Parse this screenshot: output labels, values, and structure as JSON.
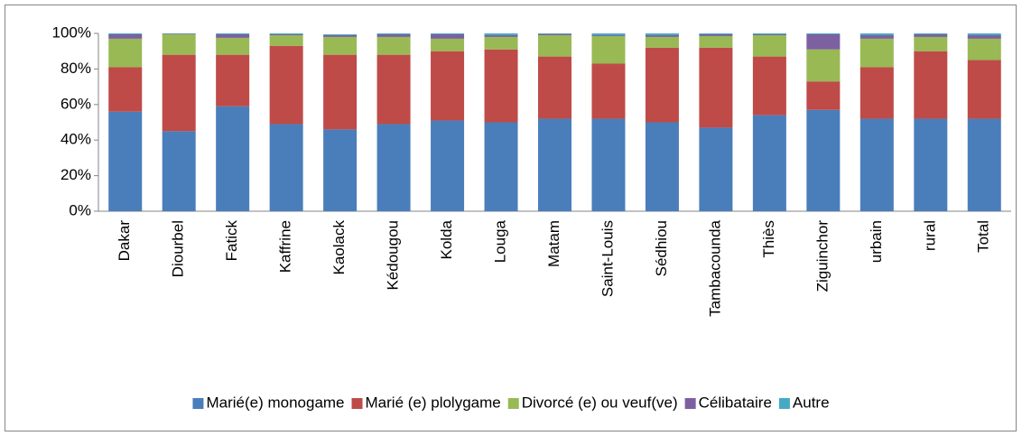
{
  "chart_data": {
    "type": "stacked_bar",
    "categories": [
      "Dakar",
      "Diourbel",
      "Fatick",
      "Kaffrine",
      "Kaolack",
      "Kédougou",
      "Kolda",
      "Louga",
      "Matam",
      "Saint-Louis",
      "Sédhiou",
      "Tambacounda",
      "Thiès",
      "Ziguinchor",
      "urbain",
      "rural",
      "Total"
    ],
    "series": [
      {
        "name": "Marié(e) monogame",
        "color": "#4a7ebb",
        "values": [
          56,
          45,
          59,
          49,
          46,
          49,
          51,
          50,
          52,
          52,
          50,
          47,
          54,
          57,
          52,
          52,
          52
        ]
      },
      {
        "name": "Marié (e) plolygame",
        "color": "#be4b48",
        "values": [
          25,
          43,
          29,
          44,
          42,
          39,
          39,
          41,
          35,
          31,
          42,
          45,
          33,
          16,
          29,
          38,
          33
        ]
      },
      {
        "name": "Divorcé (e) ou veuf(ve)",
        "color": "#98b954",
        "values": [
          16,
          11.5,
          9.5,
          6,
          10,
          10,
          7,
          7,
          12,
          15.5,
          6,
          6.5,
          12,
          18,
          16,
          8,
          12
        ]
      },
      {
        "name": "Célibataire",
        "color": "#7d60a0",
        "values": [
          2.5,
          0.3,
          2,
          0.5,
          1,
          1.5,
          2.5,
          1,
          0.7,
          0.5,
          1,
          1,
          0.5,
          8.5,
          2,
          1.5,
          2
        ]
      },
      {
        "name": "Autre",
        "color": "#46aac5",
        "values": [
          0.5,
          0.2,
          0.5,
          0.5,
          0.5,
          0.5,
          0.5,
          1,
          0.3,
          1,
          1,
          0.5,
          0.5,
          0.5,
          1,
          0.5,
          1
        ]
      }
    ],
    "ylim": [
      0,
      100
    ],
    "yticks": [
      {
        "value": 0,
        "label": "0%"
      },
      {
        "value": 20,
        "label": "20%"
      },
      {
        "value": 40,
        "label": "40%"
      },
      {
        "value": 60,
        "label": "60%"
      },
      {
        "value": 80,
        "label": "80%"
      },
      {
        "value": 100,
        "label": "100%"
      }
    ],
    "legend": "bottom"
  }
}
